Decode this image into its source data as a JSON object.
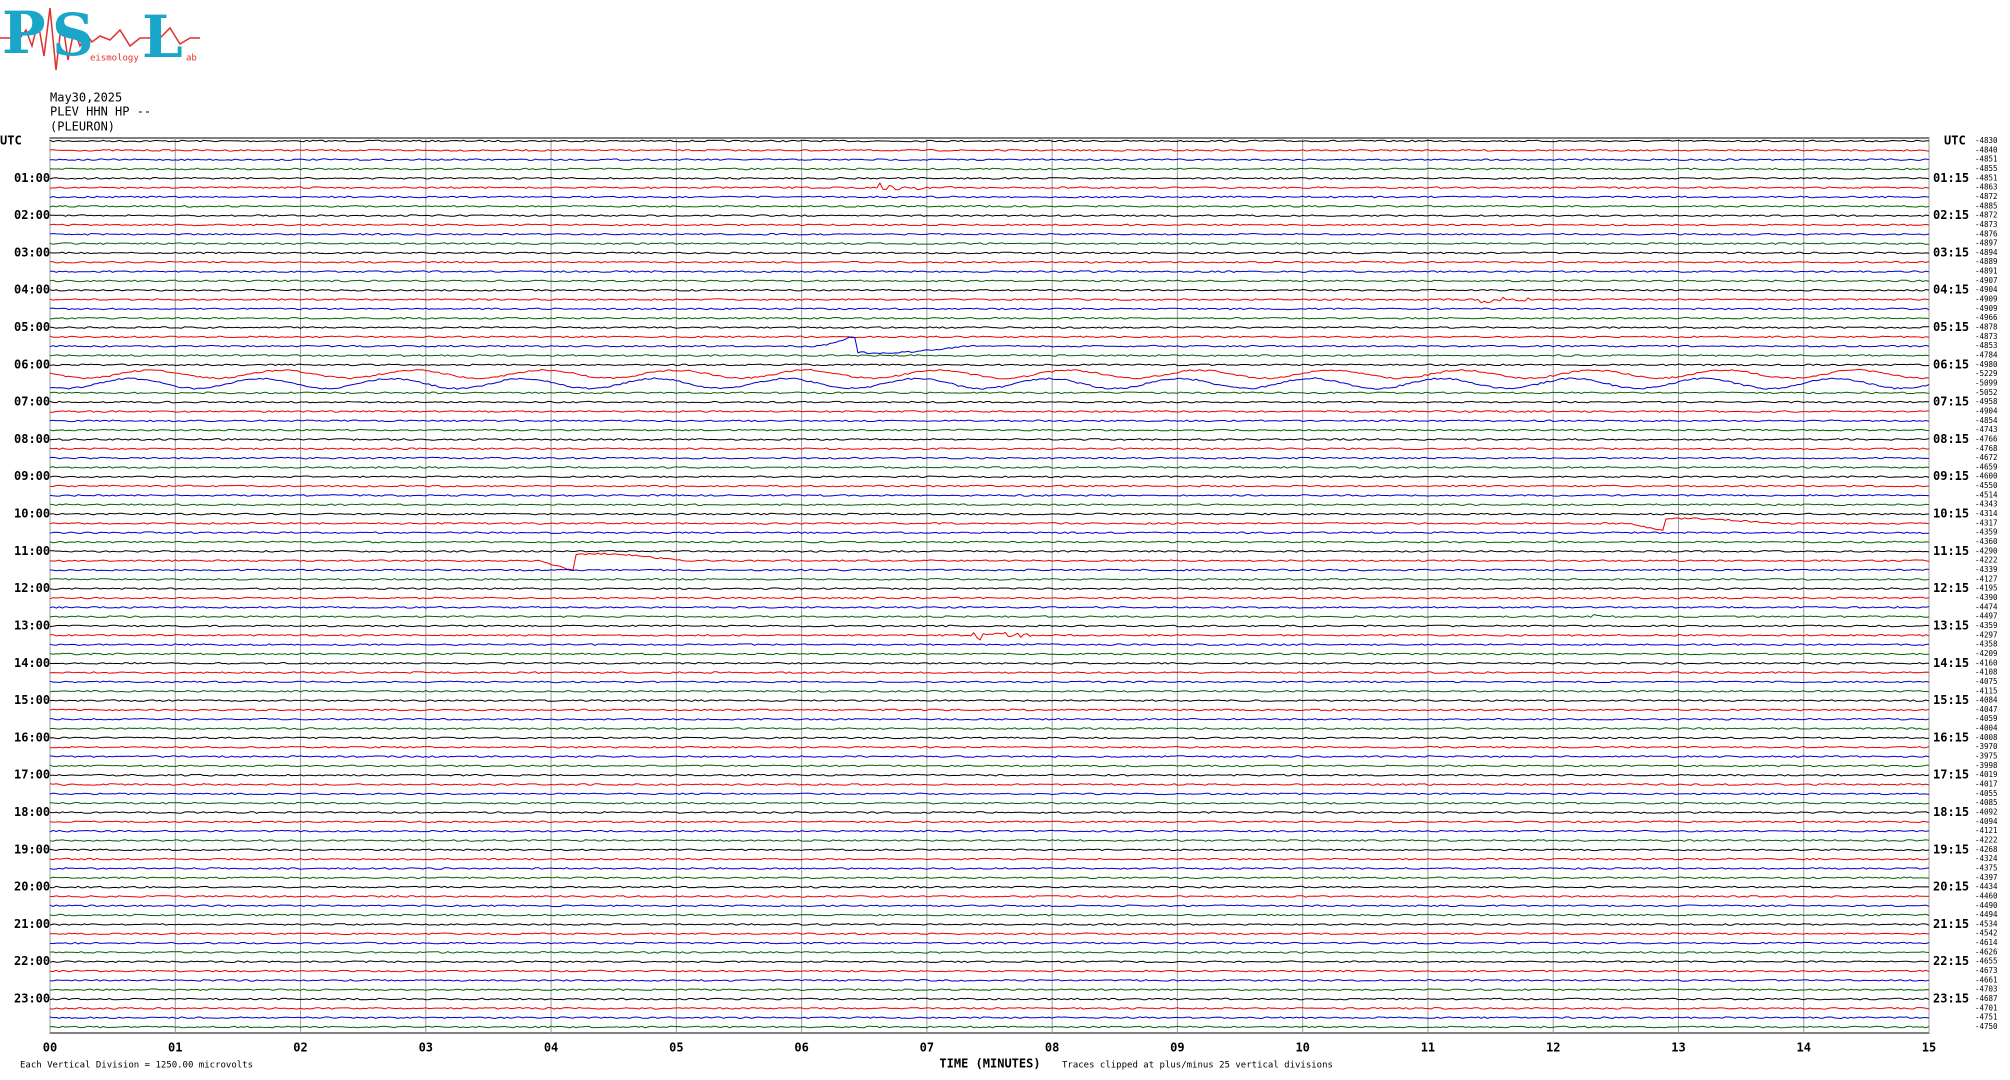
{
  "logo": {
    "letters": [
      "P",
      "S",
      "L"
    ],
    "small": [
      "eismology",
      "ab"
    ]
  },
  "header": {
    "date": "May30,2025",
    "station": "PLEV HHN HP --",
    "site": "(PLEURON)"
  },
  "left_axis": {
    "title": "UTC",
    "labels": [
      "01:00",
      "02:00",
      "03:00",
      "04:00",
      "05:00",
      "06:00",
      "07:00",
      "08:00",
      "09:00",
      "10:00",
      "11:00",
      "12:00",
      "13:00",
      "14:00",
      "15:00",
      "16:00",
      "17:00",
      "18:00",
      "19:00",
      "20:00",
      "21:00",
      "22:00",
      "23:00"
    ]
  },
  "right_axis": {
    "title": "UTC",
    "labels": [
      "01:15",
      "02:15",
      "03:15",
      "04:15",
      "05:15",
      "06:15",
      "07:15",
      "08:15",
      "09:15",
      "10:15",
      "11:15",
      "12:15",
      "13:15",
      "14:15",
      "15:15",
      "16:15",
      "17:15",
      "18:15",
      "19:15",
      "20:15",
      "21:15",
      "22:15",
      "23:15"
    ],
    "offsets": [
      "-4830",
      "-4840",
      "-4851",
      "-4855",
      "-4851",
      "-4863",
      "-4872",
      "-4885",
      "-4872",
      "-4873",
      "-4876",
      "-4897",
      "-4894",
      "-4889",
      "-4891",
      "-4907",
      "-4904",
      "-4909",
      "-4909",
      "-4966",
      "-4878",
      "-4873",
      "-4853",
      "-4784",
      "-4980",
      "-5229",
      "-5099",
      "-5052",
      "-4958",
      "-4904",
      "-4854",
      "-4743",
      "-4766",
      "-4768",
      "-4672",
      "-4659",
      "-4600",
      "-4550",
      "-4514",
      "-4343",
      "-4314",
      "-4317",
      "-4359",
      "-4360",
      "-4290",
      "-4222",
      "-4339",
      "-4127",
      "-4195",
      "-4390",
      "-4474",
      "-4497",
      "-4359",
      "-4297",
      "-4358",
      "-4209",
      "-4160",
      "-4108",
      "-4075",
      "-4115",
      "-4084",
      "-4047",
      "-4059",
      "-4004",
      "-4008",
      "-3970",
      "-3975",
      "-3998",
      "-4019",
      "-4017",
      "-4055",
      "-4085",
      "-4092",
      "-4094",
      "-4121",
      "-4222",
      "-4268",
      "-4324",
      "-4375",
      "-4397",
      "-4434",
      "-4460",
      "-4490",
      "-4494",
      "-4534",
      "-4542",
      "-4614",
      "-4626",
      "-4655",
      "-4673",
      "-4661",
      "-4703",
      "-4687",
      "-4701",
      "-4751",
      "-4750"
    ]
  },
  "bottom_axis": {
    "labels": [
      "00",
      "01",
      "02",
      "03",
      "04",
      "05",
      "06",
      "07",
      "08",
      "09",
      "10",
      "11",
      "12",
      "13",
      "14",
      "15"
    ],
    "title": "TIME (MINUTES)"
  },
  "notes": {
    "scale": "Each Vertical Division = 1250.00 microvolts",
    "clip": "Traces clipped at plus/minus 25 vertical divisions"
  }
}
